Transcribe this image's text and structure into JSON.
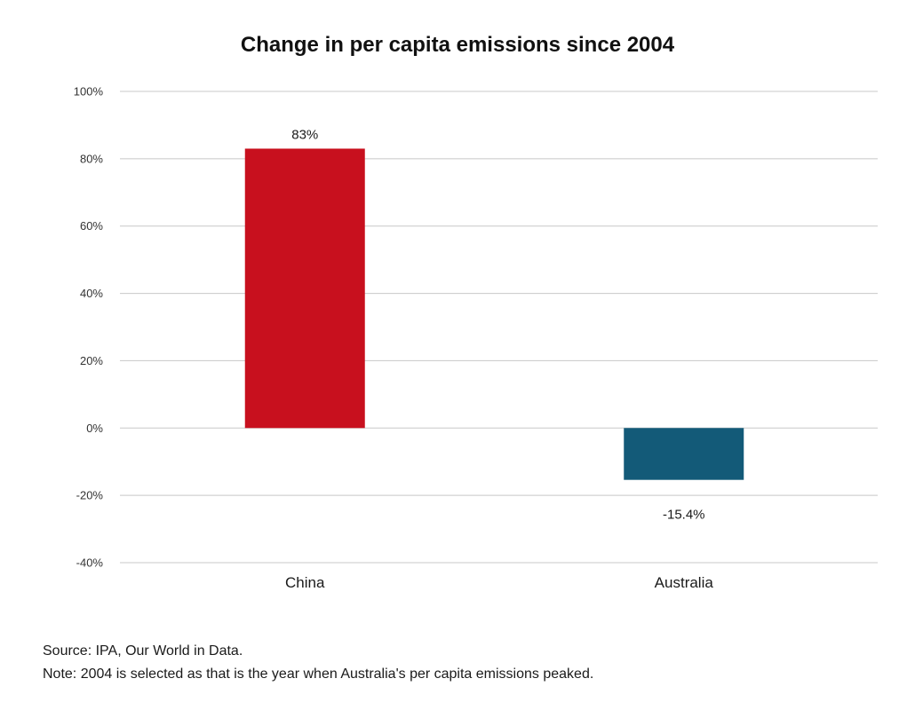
{
  "chart_data": {
    "type": "bar",
    "title": "Change in per capita emissions since 2004",
    "xlabel": "",
    "ylabel": "",
    "categories": [
      "China",
      "Australia"
    ],
    "values": [
      83,
      -15.4
    ],
    "value_labels": [
      "83%",
      "-15.4%"
    ],
    "colors": [
      "#c8101e",
      "#135a78"
    ],
    "ylim": [
      -40,
      100
    ],
    "yticks": [
      100,
      80,
      60,
      40,
      20,
      0,
      -20,
      -40
    ],
    "ytick_labels": [
      "100%",
      "80%",
      "60%",
      "40%",
      "20%",
      "0%",
      "-20%",
      "-40%"
    ],
    "grid": true,
    "legend": "none"
  },
  "footer": {
    "source": "Source: IPA, Our World in Data.",
    "note": "Note: 2004 is selected as that is the year when Australia's per capita emissions peaked."
  }
}
